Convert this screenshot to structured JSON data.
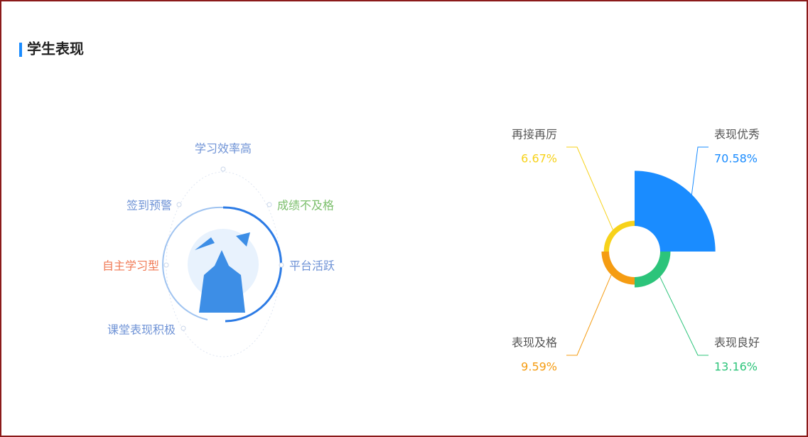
{
  "header": {
    "title": "学生表现"
  },
  "tags": [
    {
      "label": "学习效率高",
      "color": "#6f93d6"
    },
    {
      "label": "成绩不及格",
      "color": "#7cbf6c"
    },
    {
      "label": "平台活跃",
      "color": "#6f93d6"
    },
    {
      "label": "课堂表现积极",
      "color": "#6f93d6"
    },
    {
      "label": "自主学习型",
      "color": "#f07a55"
    },
    {
      "label": "签到预警",
      "color": "#6f93d6"
    }
  ],
  "chart_data": {
    "type": "rose",
    "categories": [
      "表现优秀",
      "表现良好",
      "表现及格",
      "再接再厉"
    ],
    "values": [
      70.58,
      13.16,
      9.59,
      6.67
    ],
    "value_labels": [
      "70.58%",
      "13.16%",
      "9.59%",
      "6.67%"
    ],
    "colors": [
      "#1a8cff",
      "#2cc47a",
      "#f59c12",
      "#f7d21a"
    ]
  }
}
